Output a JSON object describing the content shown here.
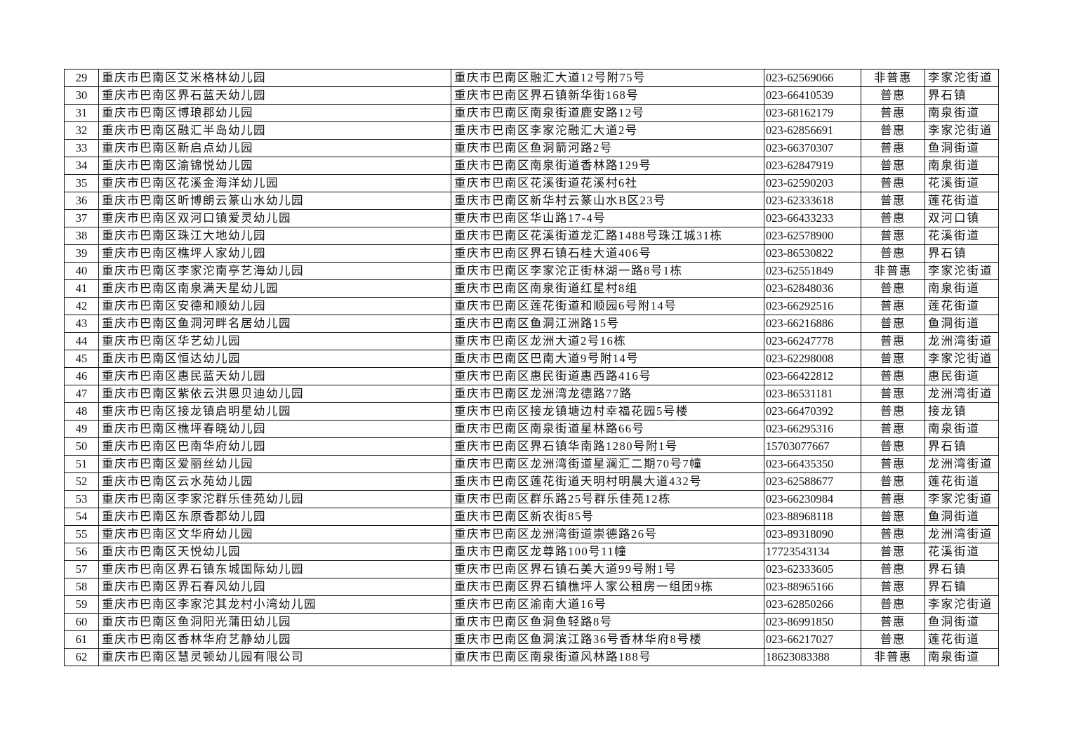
{
  "rows": [
    [
      "29",
      "重庆市巴南区艾米格林幼儿园",
      "重庆市巴南区融汇大道12号附75号",
      "023-62569066",
      "非普惠",
      "李家沱街道"
    ],
    [
      "30",
      "重庆市巴南区界石蓝天幼儿园",
      "重庆市巴南区界石镇新华街168号",
      "023-66410539",
      "普惠",
      "界石镇"
    ],
    [
      "31",
      "重庆市巴南区博琅郡幼儿园",
      "重庆市巴南区南泉街道鹿安路12号",
      "023-68162179",
      "普惠",
      "南泉街道"
    ],
    [
      "32",
      "重庆市巴南区融汇半岛幼儿园",
      "重庆市巴南区李家沱融汇大道2号",
      "023-62856691",
      "普惠",
      "李家沱街道"
    ],
    [
      "33",
      "重庆市巴南区新启点幼儿园",
      "重庆市巴南区鱼洞箭河路2号",
      "023-66370307",
      "普惠",
      "鱼洞街道"
    ],
    [
      "34",
      "重庆市巴南区渝锦悦幼儿园",
      "重庆市巴南区南泉街道香林路129号",
      "023-62847919",
      "普惠",
      "南泉街道"
    ],
    [
      "35",
      "重庆市巴南区花溪金海洋幼儿园",
      "重庆市巴南区花溪街道花溪村6社",
      "023-62590203",
      "普惠",
      "花溪街道"
    ],
    [
      "36",
      "重庆市巴南区昕博朗云篆山水幼儿园",
      "重庆市巴南区新华村云篆山水B区23号",
      "023-62333618",
      "普惠",
      "莲花街道"
    ],
    [
      "37",
      "重庆市巴南区双河口镇爱灵幼儿园",
      "重庆市巴南区华山路17-4号",
      "023-66433233",
      "普惠",
      "双河口镇"
    ],
    [
      "38",
      "重庆市巴南区珠江大地幼儿园",
      "重庆市巴南区花溪街道龙汇路1488号珠江城31栋",
      "023-62578900",
      "普惠",
      "花溪街道"
    ],
    [
      "39",
      "重庆市巴南区樵坪人家幼儿园",
      "重庆市巴南区界石镇石桂大道406号",
      "023-86530822",
      "普惠",
      "界石镇"
    ],
    [
      "40",
      "重庆市巴南区李家沱南亭艺海幼儿园",
      "重庆市巴南区李家沱正街林湖一路8号1栋",
      "023-62551849",
      "非普惠",
      "李家沱街道"
    ],
    [
      "41",
      "重庆市巴南区南泉满天星幼儿园",
      "重庆市巴南区南泉街道红星村8组",
      "023-62848036",
      "普惠",
      "南泉街道"
    ],
    [
      "42",
      "重庆市巴南区安德和顺幼儿园",
      "重庆市巴南区莲花街道和顺园6号附14号",
      "023-66292516",
      "普惠",
      "莲花街道"
    ],
    [
      "43",
      "重庆市巴南区鱼洞河畔名居幼儿园",
      "重庆市巴南区鱼洞江洲路15号",
      "023-66216886",
      "普惠",
      "鱼洞街道"
    ],
    [
      "44",
      "重庆市巴南区华艺幼儿园",
      "重庆市巴南区龙洲大道2号16栋",
      "023-66247778",
      "普惠",
      "龙洲湾街道"
    ],
    [
      "45",
      "重庆市巴南区恒达幼儿园",
      "重庆市巴南区巴南大道9号附14号",
      "023-62298008",
      "普惠",
      "李家沱街道"
    ],
    [
      "46",
      "重庆市巴南区惠民蓝天幼儿园",
      "重庆市巴南区惠民街道惠西路416号",
      "023-66422812",
      "普惠",
      "惠民街道"
    ],
    [
      "47",
      "重庆市巴南区紫依云洪恩贝迪幼儿园",
      "重庆市巴南区龙洲湾龙德路77路",
      "023-86531181",
      "普惠",
      "龙洲湾街道"
    ],
    [
      "48",
      "重庆市巴南区接龙镇启明星幼儿园",
      "重庆市巴南区接龙镇塘边村幸福花园5号楼",
      "023-66470392",
      "普惠",
      "接龙镇"
    ],
    [
      "49",
      "重庆市巴南区樵坪春晓幼儿园",
      "重庆市巴南区南泉街道星林路66号",
      "023-66295316",
      "普惠",
      "南泉街道"
    ],
    [
      "50",
      "重庆市巴南区巴南华府幼儿园",
      "重庆市巴南区界石镇华南路1280号附1号",
      "15703077667",
      "普惠",
      "界石镇"
    ],
    [
      "51",
      "重庆市巴南区爱丽丝幼儿园",
      "重庆市巴南区龙洲湾街道星澜汇二期70号7幢",
      "023-66435350",
      "普惠",
      "龙洲湾街道"
    ],
    [
      "52",
      "重庆市巴南区云水苑幼儿园",
      "重庆市巴南区莲花街道天明村明晨大道432号",
      "023-62588677",
      "普惠",
      "莲花街道"
    ],
    [
      "53",
      "重庆市巴南区李家沱群乐佳苑幼儿园",
      "重庆市巴南区群乐路25号群乐佳苑12栋",
      "023-66230984",
      "普惠",
      "李家沱街道"
    ],
    [
      "54",
      "重庆市巴南区东原香郡幼儿园",
      "重庆市巴南区新农街85号",
      "023-88968118",
      "普惠",
      "鱼洞街道"
    ],
    [
      "55",
      "重庆市巴南区文华府幼儿园",
      "重庆市巴南区龙洲湾街道崇德路26号",
      "023-89318090",
      "普惠",
      "龙洲湾街道"
    ],
    [
      "56",
      "重庆市巴南区天悦幼儿园",
      "重庆市巴南区龙尊路100号11幢",
      "17723543134",
      "普惠",
      "花溪街道"
    ],
    [
      "57",
      "重庆市巴南区界石镇东城国际幼儿园",
      "重庆市巴南区界石镇石美大道99号附1号",
      "023-62333605",
      "普惠",
      "界石镇"
    ],
    [
      "58",
      "重庆市巴南区界石春风幼儿园",
      "重庆市巴南区界石镇樵坪人家公租房一组团9栋",
      "023-88965166",
      "普惠",
      "界石镇"
    ],
    [
      "59",
      "重庆市巴南区李家沱其龙村小湾幼儿园",
      "重庆市巴南区渝南大道16号",
      "023-62850266",
      "普惠",
      "李家沱街道"
    ],
    [
      "60",
      "重庆市巴南区鱼洞阳光蒲田幼儿园",
      "重庆市巴南区鱼洞鱼轻路8号",
      "023-86991850",
      "普惠",
      "鱼洞街道"
    ],
    [
      "61",
      "重庆市巴南区香林华府艺静幼儿园",
      "重庆市巴南区鱼洞滨江路36号香林华府8号楼",
      "023-66217027",
      "普惠",
      "莲花街道"
    ],
    [
      "62",
      "重庆市巴南区慧灵顿幼儿园有限公司",
      "重庆市巴南区南泉街道风林路188号",
      "18623083388",
      "非普惠",
      "南泉街道"
    ]
  ]
}
